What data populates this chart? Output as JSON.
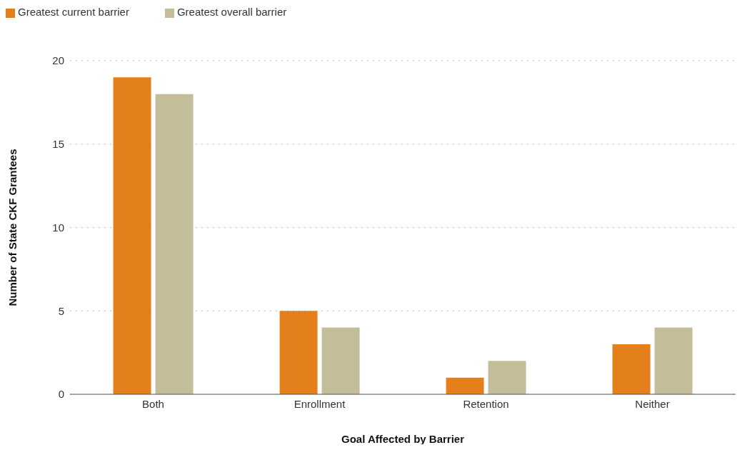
{
  "chart_data": {
    "type": "bar",
    "xlabel": "Goal Affected by Barrier",
    "ylabel": "Number of State CKF Grantees",
    "categories": [
      "Both",
      "Enrollment",
      "Retention",
      "Neither"
    ],
    "series": [
      {
        "name": "Greatest current barrier",
        "color": "#e3801c",
        "values": [
          19,
          5,
          1,
          3
        ]
      },
      {
        "name": "Greatest overall barrier",
        "color": "#c4bd99",
        "values": [
          18,
          4,
          2,
          4
        ]
      }
    ],
    "ylim": [
      0,
      20
    ],
    "yticks": [
      0,
      5,
      10,
      15,
      20
    ],
    "grid": "y",
    "legend": "top left"
  }
}
